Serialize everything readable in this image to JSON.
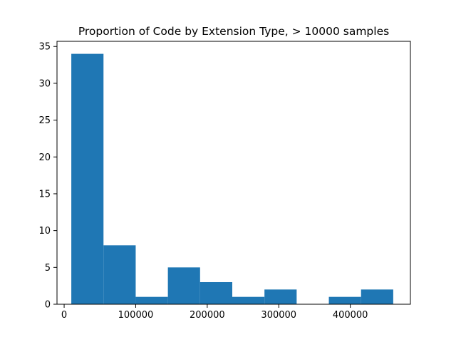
{
  "chart_data": {
    "type": "bar",
    "title": "Proportion of Code by Extension Type, > 10000 samples",
    "xlabel": "",
    "ylabel": "",
    "xlim": [
      -10000,
      484000
    ],
    "ylim": [
      0,
      35.7
    ],
    "bar_color": "#1f77b4",
    "grid": false,
    "bin_edges": [
      10000,
      55000,
      100000,
      145000,
      190000,
      235000,
      280000,
      325000,
      370000,
      415000,
      460000
    ],
    "values": [
      34,
      8,
      1,
      5,
      3,
      1,
      2,
      0,
      1,
      2
    ],
    "x_ticks": [
      0,
      100000,
      200000,
      300000,
      400000
    ],
    "x_tick_labels": [
      "0",
      "100000",
      "200000",
      "300000",
      "400000"
    ],
    "y_ticks": [
      0,
      5,
      10,
      15,
      20,
      25,
      30,
      35
    ],
    "y_tick_labels": [
      "0",
      "5",
      "10",
      "15",
      "20",
      "25",
      "30",
      "35"
    ]
  }
}
